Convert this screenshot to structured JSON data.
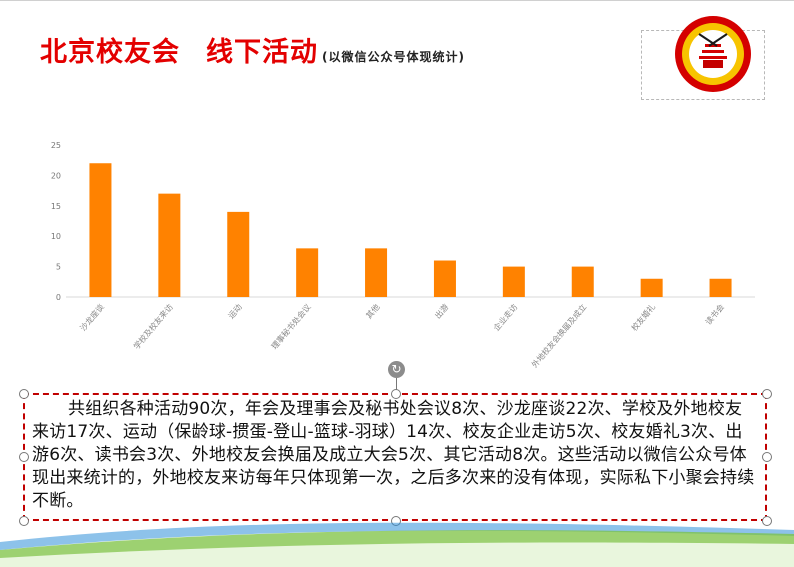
{
  "slide": {
    "title_main": "北京校友会",
    "title_sub": "线下活动",
    "title_note": "(以微信公众号体现统计)"
  },
  "colors": {
    "title": "#e30000",
    "bar": "#ff8200",
    "text_border": "#c00000",
    "deco_green": "#7cc242",
    "deco_blue": "#2f8fd8"
  },
  "textbox": {
    "body": "共组织各种活动90次，年会及理事会及秘书处会议8次、沙龙座谈22次、学校及外地校友来访17次、运动（保龄球-掼蛋-登山-篮球-羽球）14次、校友企业走访5次、校友婚礼3次、出游6次、读书会3次、外地校友会换届及成立大会5次、其它活动8次。这些活动以微信公众号体现出来统计的，外地校友来访每年只体现第一次，之后多次来的没有体现，实际私下小聚会持续不断。"
  },
  "chart_data": {
    "type": "bar",
    "categories": [
      "沙龙座谈",
      "学校及校友来访",
      "运动",
      "理事秘书处会议",
      "其他",
      "出游",
      "企业走访",
      "外地校友会换届及成立",
      "校友婚礼",
      "读书会"
    ],
    "values": [
      22,
      17,
      14,
      8,
      8,
      6,
      5,
      5,
      3,
      3
    ],
    "yticks": [
      "0",
      "5",
      "10",
      "15",
      "20",
      "25"
    ],
    "ylim": [
      0,
      25
    ],
    "grid": false,
    "legend": "none"
  }
}
